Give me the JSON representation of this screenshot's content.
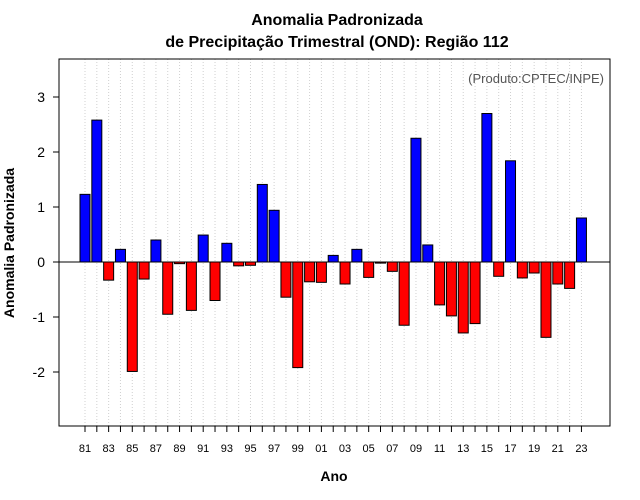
{
  "chart_data": {
    "type": "bar",
    "title_line1": "Anomalia Padronizada",
    "title_line2": "de Precipitação Trimestral (OND): Região 112",
    "xlabel": "Ano",
    "ylabel": "Anomalia Padronizada",
    "credit": "(Produto:CPTEC/INPE)",
    "ylim": [
      -3,
      3.7
    ],
    "yticks": [
      -2,
      -1,
      0,
      1,
      2,
      3
    ],
    "ytick_labels": [
      "-2",
      "-1",
      "0",
      "1",
      "2",
      "3"
    ],
    "x_tick_labels": [
      "81",
      "83",
      "85",
      "87",
      "89",
      "91",
      "93",
      "95",
      "97",
      "99",
      "01",
      "03",
      "05",
      "07",
      "09",
      "11",
      "13",
      "15",
      "17",
      "19",
      "21",
      "23"
    ],
    "grid": "vertical-dotted",
    "colors": {
      "positive": "#0000ff",
      "negative": "#ff0000"
    },
    "categories": [
      "1981",
      "1982",
      "1983",
      "1984",
      "1985",
      "1986",
      "1987",
      "1988",
      "1989",
      "1990",
      "1991",
      "1992",
      "1993",
      "1994",
      "1995",
      "1996",
      "1997",
      "1998",
      "1999",
      "2000",
      "2001",
      "2002",
      "2003",
      "2004",
      "2005",
      "2006",
      "2007",
      "2008",
      "2009",
      "2010",
      "2011",
      "2012",
      "2013",
      "2014",
      "2015",
      "2016",
      "2017",
      "2018",
      "2019",
      "2020",
      "2021",
      "2022",
      "2023"
    ],
    "values": [
      1.23,
      2.58,
      -0.33,
      0.23,
      -1.99,
      -0.31,
      0.4,
      -0.95,
      -0.03,
      -0.88,
      0.49,
      -0.7,
      0.34,
      -0.07,
      -0.06,
      1.41,
      0.94,
      -0.64,
      -1.92,
      -0.36,
      -0.37,
      0.12,
      -0.4,
      0.23,
      -0.28,
      -0.02,
      -0.17,
      -1.15,
      2.25,
      0.31,
      -0.78,
      -0.98,
      -1.29,
      -1.12,
      2.7,
      -0.26,
      1.84,
      -0.29,
      -0.2,
      -1.37,
      -0.4,
      -0.48,
      0.8
    ]
  }
}
